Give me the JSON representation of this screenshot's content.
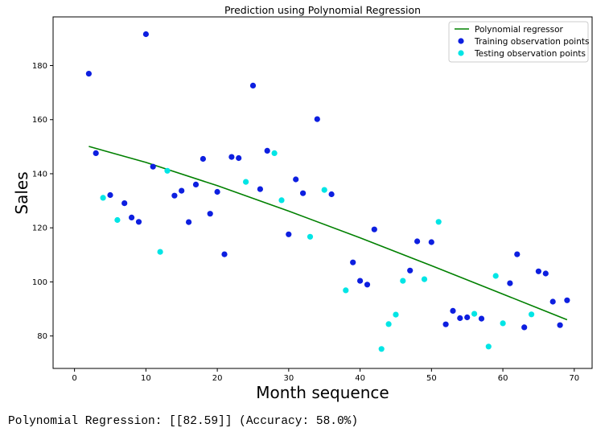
{
  "chart_data": {
    "type": "scatter",
    "title": "Prediction using Polynomial Regression",
    "xlabel": "Month sequence",
    "ylabel": "Sales",
    "xlim": [
      -3,
      72.5
    ],
    "ylim": [
      68,
      198
    ],
    "xticks": [
      0,
      10,
      20,
      30,
      40,
      50,
      60,
      70
    ],
    "yticks": [
      80,
      100,
      120,
      140,
      160,
      180
    ],
    "grid": false,
    "legend_position": "top-right",
    "series": [
      {
        "name": "Polynomial regressor",
        "kind": "line",
        "color": "#008000",
        "x": [
          2,
          10,
          20,
          30,
          40,
          50,
          60,
          69
        ],
        "y": [
          150.1,
          144.2,
          135.6,
          126.2,
          116.3,
          106.0,
          95.5,
          86.0
        ]
      },
      {
        "name": "Training observation points",
        "kind": "scatter",
        "color": "#0d1fe0",
        "x": [
          2,
          3,
          5,
          7,
          8,
          9,
          10,
          11,
          14,
          15,
          16,
          17,
          18,
          19,
          20,
          21,
          22,
          23,
          25,
          26,
          27,
          30,
          31,
          32,
          34,
          36,
          39,
          40,
          41,
          42,
          47,
          48,
          50,
          52,
          53,
          54,
          55,
          57,
          61,
          62,
          63,
          65,
          66,
          67,
          68,
          69
        ],
        "y": [
          177,
          147.6,
          132.1,
          129.1,
          123.8,
          122.2,
          191.6,
          142.6,
          131.9,
          133.7,
          122.1,
          136.0,
          145.5,
          125.2,
          133.3,
          110.2,
          146.2,
          145.8,
          172.6,
          134.3,
          148.5,
          117.6,
          137.9,
          132.8,
          160.2,
          132.4,
          107.2,
          100.4,
          99.0,
          119.4,
          104.2,
          115.0,
          114.7,
          84.3,
          89.3,
          86.6,
          86.9,
          86.4,
          99.5,
          110.2,
          83.2,
          103.9,
          103.1,
          92.7,
          84.0,
          93.2
        ]
      },
      {
        "name": "Testing observation points",
        "kind": "scatter",
        "color": "#00e5e5",
        "x": [
          4,
          6,
          12,
          13,
          24,
          28,
          29,
          33,
          35,
          38,
          43,
          44,
          45,
          46,
          49,
          51,
          56,
          58,
          59,
          60,
          64
        ],
        "y": [
          131.1,
          122.9,
          111.1,
          141.1,
          137.0,
          147.6,
          130.2,
          116.7,
          134.0,
          96.9,
          75.2,
          84.4,
          87.9,
          100.4,
          101.0,
          122.2,
          88.2,
          76.1,
          102.2,
          84.7,
          88.0
        ]
      }
    ]
  },
  "output_text": "Polynomial Regression: [[82.59]] (Accuracy: 58.0%)"
}
